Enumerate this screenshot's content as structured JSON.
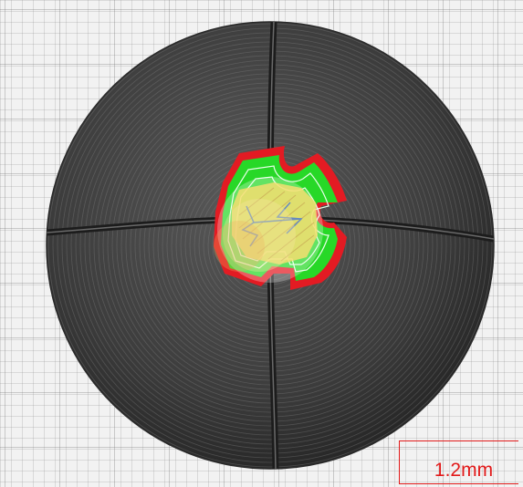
{
  "viewport": {
    "background": "#f2f2f2",
    "grid": true
  },
  "model": {
    "shape": "sphere",
    "shell_color": "#3a3a3a",
    "outer_wall_color": "#e31b23",
    "infill_wall_color": "#27d827",
    "top_skin_color": "#f2d23a",
    "travel_color": "#2c5ea8"
  },
  "scale": {
    "label": "1.2mm",
    "color": "#e21a1a"
  }
}
